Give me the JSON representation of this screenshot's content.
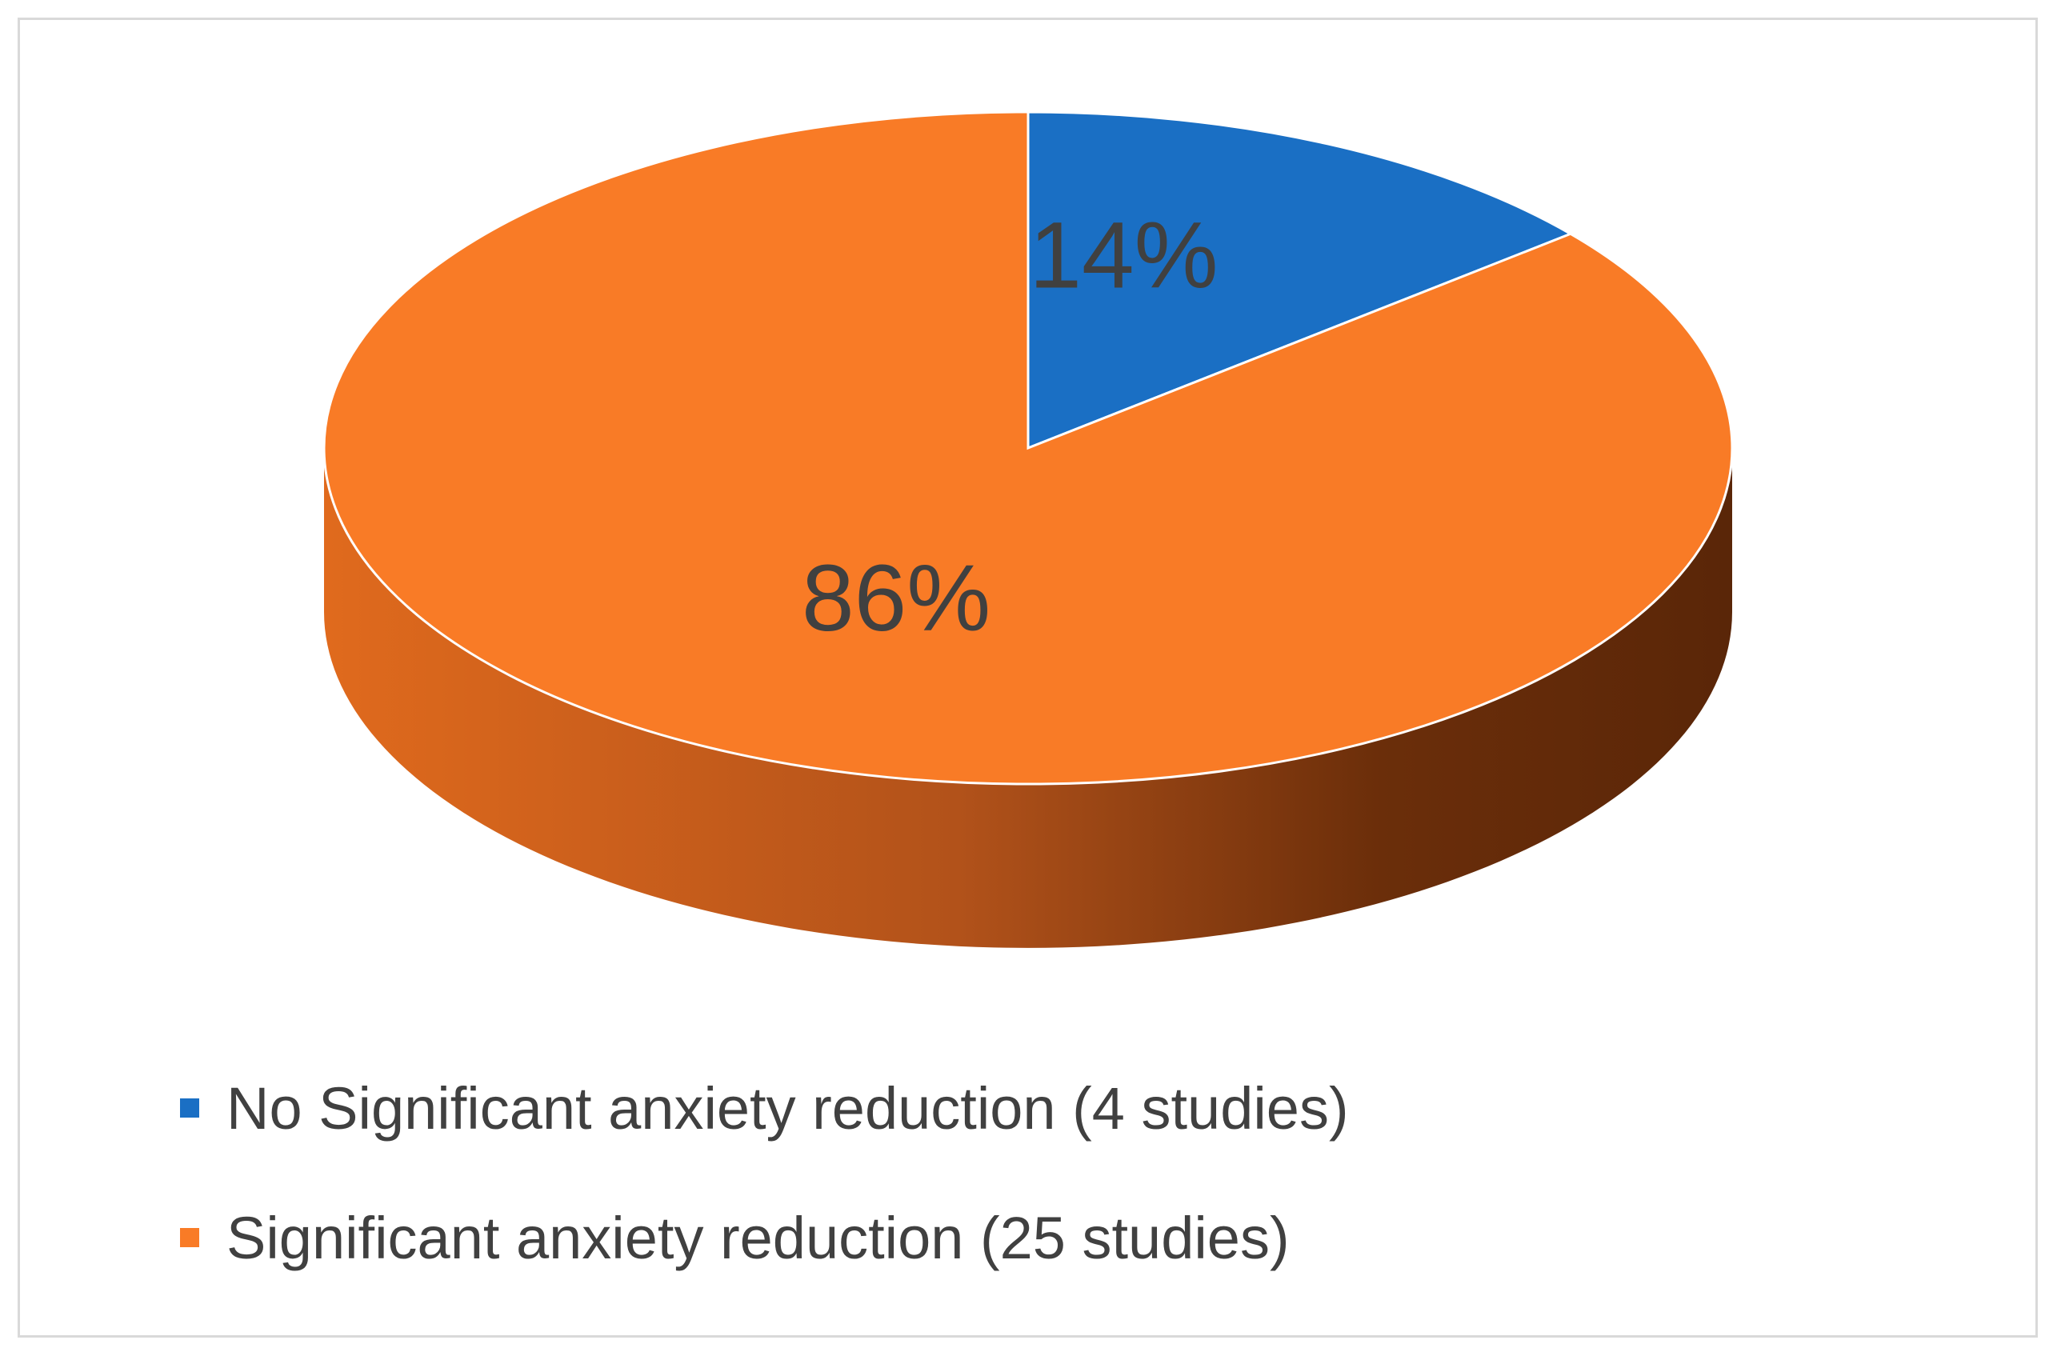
{
  "chart_data": {
    "type": "pie",
    "style": "3d",
    "title": "",
    "slices": [
      {
        "label": "No Significant anxiety reduction (4 studies)",
        "value": 14,
        "studies": 4,
        "data_label": "14%",
        "color": "#1a6fc4"
      },
      {
        "label": "Significant anxiety reduction (25 studies)",
        "value": 86,
        "studies": 25,
        "data_label": "86%",
        "color": "#f97b26"
      }
    ],
    "legend_position": "bottom-left"
  }
}
